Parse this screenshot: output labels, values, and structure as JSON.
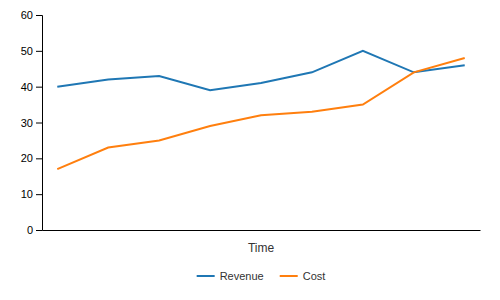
{
  "chart_data": {
    "type": "line",
    "x": [
      0,
      1,
      2,
      3,
      4,
      5,
      6,
      7,
      8
    ],
    "series": [
      {
        "name": "Revenue",
        "values": [
          40,
          42,
          43,
          39,
          41,
          44,
          50,
          44,
          46
        ]
      },
      {
        "name": "Cost",
        "values": [
          17,
          23,
          25,
          29,
          32,
          33,
          35,
          44,
          48
        ]
      }
    ],
    "xlabel": "Time",
    "xlim": [
      -0.3,
      8.3
    ],
    "ylim": [
      0,
      60
    ],
    "yticks": [
      0,
      10,
      20,
      30,
      40,
      50,
      60
    ],
    "tick_labels": "y",
    "grid": false,
    "legend": "bottom"
  }
}
